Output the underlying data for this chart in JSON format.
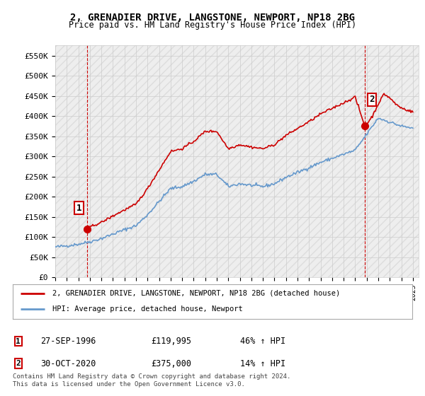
{
  "title": "2, GRENADIER DRIVE, LANGSTONE, NEWPORT, NP18 2BG",
  "subtitle": "Price paid vs. HM Land Registry's House Price Index (HPI)",
  "xlim_start": 1994.0,
  "xlim_end": 2025.5,
  "ylim_min": 0,
  "ylim_max": 575000,
  "yticks": [
    0,
    50000,
    100000,
    150000,
    200000,
    250000,
    300000,
    350000,
    400000,
    450000,
    500000,
    550000
  ],
  "ytick_labels": [
    "£0",
    "£50K",
    "£100K",
    "£150K",
    "£200K",
    "£250K",
    "£300K",
    "£350K",
    "£400K",
    "£450K",
    "£500K",
    "£550K"
  ],
  "hpi_color": "#6699cc",
  "price_color": "#cc0000",
  "purchase1_x": 1996.74,
  "purchase1_y": 119995,
  "purchase1_label": "1",
  "purchase2_x": 2020.83,
  "purchase2_y": 375000,
  "purchase2_label": "2",
  "legend_label1": "2, GRENADIER DRIVE, LANGSTONE, NEWPORT, NP18 2BG (detached house)",
  "legend_label2": "HPI: Average price, detached house, Newport",
  "table_row1": [
    "1",
    "27-SEP-1996",
    "£119,995",
    "46% ↑ HPI"
  ],
  "table_row2": [
    "2",
    "30-OCT-2020",
    "£375,000",
    "14% ↑ HPI"
  ],
  "footer": "Contains HM Land Registry data © Crown copyright and database right 2024.\nThis data is licensed under the Open Government Licence v3.0.",
  "bg_color": "#ffffff",
  "grid_color": "#cccccc",
  "hpi_anchors": [
    [
      1994.0,
      75000
    ],
    [
      1995.0,
      78000
    ],
    [
      1996.0,
      82000
    ],
    [
      1997.0,
      88000
    ],
    [
      1998.0,
      96000
    ],
    [
      1999.0,
      107000
    ],
    [
      2000.0,
      118000
    ],
    [
      2001.0,
      128000
    ],
    [
      2002.0,
      155000
    ],
    [
      2003.0,
      188000
    ],
    [
      2004.0,
      220000
    ],
    [
      2005.0,
      225000
    ],
    [
      2006.0,
      238000
    ],
    [
      2007.0,
      255000
    ],
    [
      2008.0,
      255000
    ],
    [
      2009.0,
      225000
    ],
    [
      2010.0,
      232000
    ],
    [
      2011.0,
      228000
    ],
    [
      2012.0,
      225000
    ],
    [
      2013.0,
      232000
    ],
    [
      2014.0,
      248000
    ],
    [
      2015.0,
      260000
    ],
    [
      2016.0,
      272000
    ],
    [
      2017.0,
      285000
    ],
    [
      2018.0,
      295000
    ],
    [
      2019.0,
      305000
    ],
    [
      2020.0,
      315000
    ],
    [
      2021.0,
      355000
    ],
    [
      2022.0,
      395000
    ],
    [
      2023.0,
      385000
    ],
    [
      2024.0,
      375000
    ],
    [
      2025.0,
      370000
    ]
  ],
  "price_anchors1": [
    [
      1996.74,
      119995
    ],
    [
      1997.0,
      125000
    ],
    [
      1998.0,
      136000
    ],
    [
      1999.0,
      152000
    ],
    [
      2000.0,
      167000
    ],
    [
      2001.0,
      181000
    ],
    [
      2002.0,
      220000
    ],
    [
      2003.0,
      266000
    ],
    [
      2004.0,
      312000
    ],
    [
      2005.0,
      319000
    ],
    [
      2006.0,
      337000
    ],
    [
      2007.0,
      362000
    ],
    [
      2008.0,
      362000
    ],
    [
      2009.0,
      319000
    ],
    [
      2010.0,
      329000
    ],
    [
      2011.0,
      323000
    ],
    [
      2012.0,
      319000
    ],
    [
      2013.0,
      329000
    ],
    [
      2014.0,
      352000
    ],
    [
      2015.0,
      369000
    ],
    [
      2016.0,
      386000
    ],
    [
      2017.0,
      405000
    ],
    [
      2018.0,
      419000
    ],
    [
      2019.0,
      433000
    ],
    [
      2020.0,
      447000
    ],
    [
      2020.83,
      375000
    ]
  ],
  "price_anchors2": [
    [
      2020.83,
      375000
    ],
    [
      2021.0,
      380000
    ],
    [
      2021.5,
      400000
    ],
    [
      2022.0,
      430000
    ],
    [
      2022.5,
      455000
    ],
    [
      2023.0,
      445000
    ],
    [
      2023.5,
      430000
    ],
    [
      2024.0,
      420000
    ],
    [
      2024.5,
      415000
    ],
    [
      2025.0,
      410000
    ]
  ]
}
